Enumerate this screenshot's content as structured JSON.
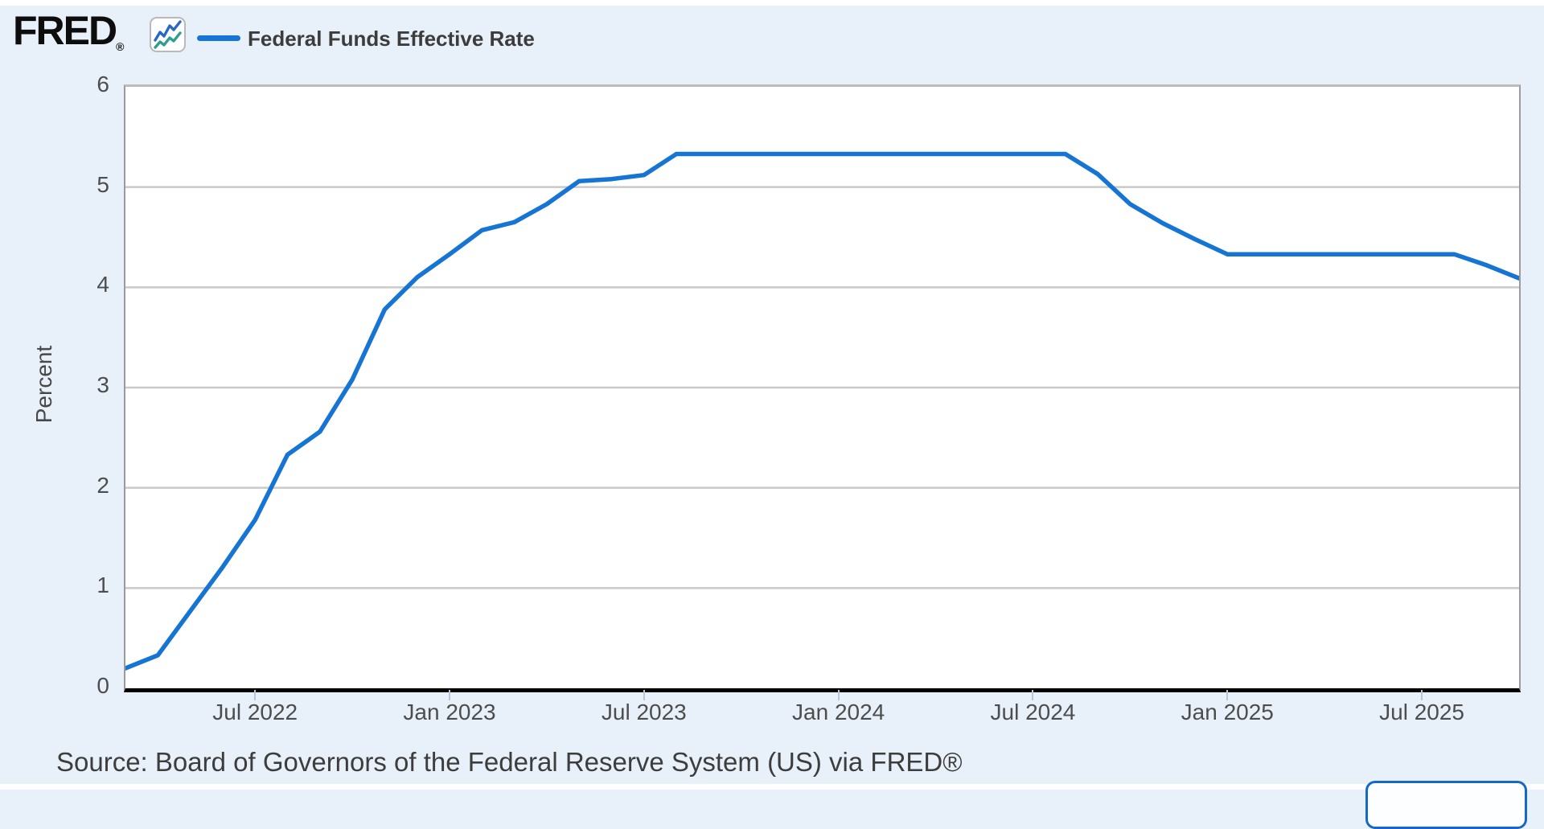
{
  "header": {
    "logo_text": "FRED",
    "logo_registered_mark": "®",
    "legend": {
      "series_label": "Federal Funds Effective Rate",
      "swatch_color": "#1574d4"
    }
  },
  "chart_data": {
    "type": "line",
    "title": "Federal Funds Effective Rate",
    "series_name": "Federal Funds Effective Rate",
    "ylabel": "Percent",
    "xlabel": "",
    "ylim": [
      0,
      6
    ],
    "y_ticks": [
      0,
      1,
      2,
      3,
      4,
      5,
      6
    ],
    "grid": "horizontal",
    "grid_values": [
      1,
      2,
      3,
      4,
      5
    ],
    "legend_position": "top-left",
    "line_color": "#1574d4",
    "x": [
      "Mar 2022",
      "Apr 2022",
      "May 2022",
      "Jun 2022",
      "Jul 2022",
      "Aug 2022",
      "Sep 2022",
      "Oct 2022",
      "Nov 2022",
      "Dec 2022",
      "Jan 2023",
      "Feb 2023",
      "Mar 2023",
      "Apr 2023",
      "May 2023",
      "Jun 2023",
      "Jul 2023",
      "Aug 2023",
      "Sep 2023",
      "Oct 2023",
      "Nov 2023",
      "Dec 2023",
      "Jan 2024",
      "Feb 2024",
      "Mar 2024",
      "Apr 2024",
      "May 2024",
      "Jun 2024",
      "Jul 2024",
      "Aug 2024",
      "Sep 2024",
      "Oct 2024",
      "Nov 2024",
      "Dec 2024",
      "Jan 2025",
      "Feb 2025",
      "Mar 2025",
      "Apr 2025",
      "May 2025",
      "Jun 2025",
      "Jul 2025",
      "Aug 2025",
      "Sep 2025",
      "Oct 2025"
    ],
    "values": [
      0.2,
      0.33,
      0.77,
      1.21,
      1.68,
      2.33,
      2.56,
      3.08,
      3.78,
      4.1,
      4.33,
      4.57,
      4.65,
      4.83,
      5.06,
      5.08,
      5.12,
      5.33,
      5.33,
      5.33,
      5.33,
      5.33,
      5.33,
      5.33,
      5.33,
      5.33,
      5.33,
      5.33,
      5.33,
      5.33,
      5.13,
      4.83,
      4.64,
      4.48,
      4.33,
      4.33,
      4.33,
      4.33,
      4.33,
      4.33,
      4.33,
      4.33,
      4.22,
      4.09
    ],
    "x_tick_labels": [
      {
        "label": "Jul 2022",
        "index": 4
      },
      {
        "label": "Jan 2023",
        "index": 10
      },
      {
        "label": "Jul 2023",
        "index": 16
      },
      {
        "label": "Jan 2024",
        "index": 22
      },
      {
        "label": "Jul 2024",
        "index": 28
      },
      {
        "label": "Jan 2025",
        "index": 34
      },
      {
        "label": "Jul 2025",
        "index": 40
      }
    ]
  },
  "footer": {
    "source_text": "Source: Board of Governors of the Federal Reserve System (US) via FRED®"
  },
  "colors": {
    "page_background": "#e8f1fa",
    "plot_background": "#ffffff",
    "gridline": "#c9c9c9",
    "axis_line": "#000000",
    "plot_border": "#9b9b9b",
    "tick_text": "#4d4d4d",
    "logo_icon_blue": "#2a68c2",
    "logo_icon_teal": "#2f9e8f",
    "button_border": "#1568c8"
  }
}
